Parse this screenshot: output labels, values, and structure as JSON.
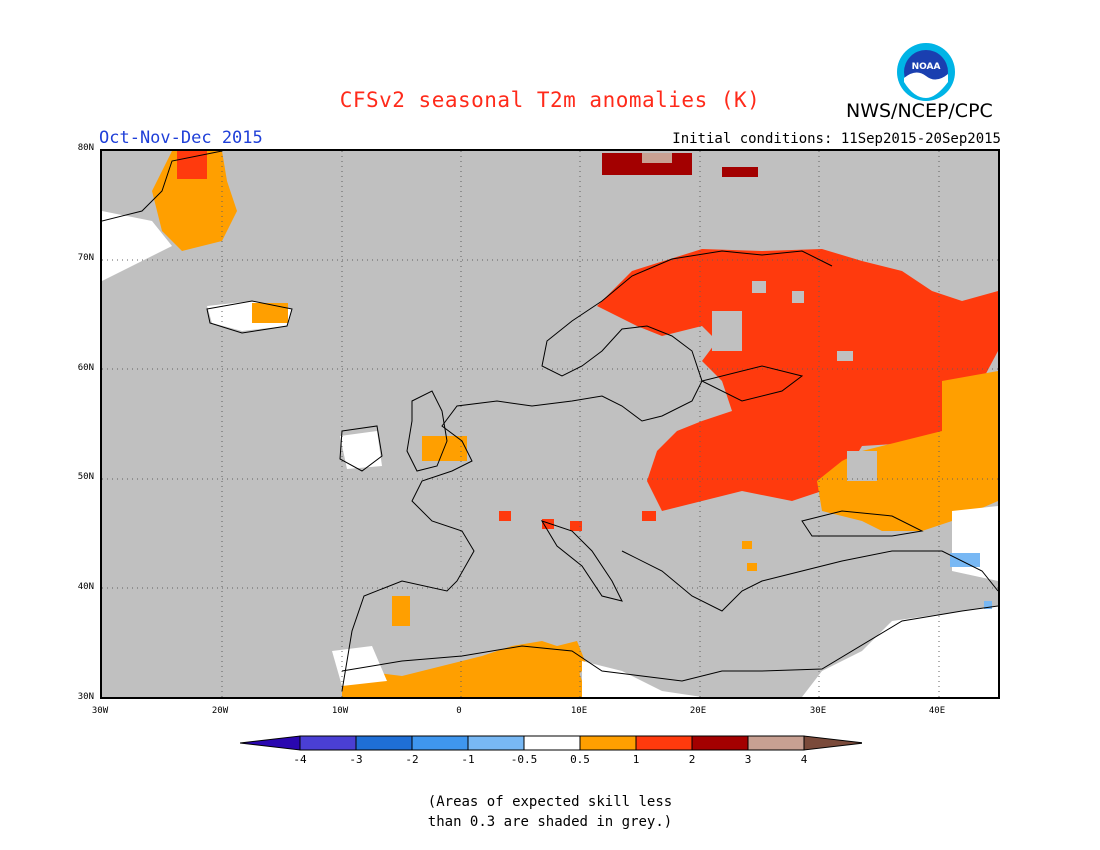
{
  "header": {
    "title": "CFSv2 seasonal T2m anomalies (K)",
    "org": "NWS/NCEP/CPC",
    "logo_text": "NOAA",
    "period": "Oct-Nov-Dec 2015",
    "initial_conditions": "Initial conditions: 11Sep2015-20Sep2015"
  },
  "map": {
    "region": "Europe",
    "lat_range": [
      30,
      80
    ],
    "lon_range": [
      -30,
      45
    ],
    "lat_labels": [
      "80N",
      "70N",
      "60N",
      "50N",
      "40N",
      "30N"
    ],
    "lon_labels": [
      "30W",
      "20W",
      "10W",
      "0",
      "10E",
      "20E",
      "30E",
      "40E"
    ],
    "background_color": "#c0c0c0"
  },
  "legend": {
    "tick_labels": [
      "-4",
      "-3",
      "-2",
      "-1",
      "-0.5",
      "0.5",
      "1",
      "2",
      "3",
      "4"
    ],
    "colors": [
      "#2a07b0",
      "#4a3fd4",
      "#1f6fd6",
      "#3f96ee",
      "#78b8f4",
      "#ffffff",
      "#ff9f00",
      "#ff3a0d",
      "#a30000",
      "#c8a092",
      "#7a4a3a"
    ]
  },
  "footnote": {
    "line1": "(Areas of expected skill less",
    "line2": "than 0.3 are shaded in grey.)"
  }
}
